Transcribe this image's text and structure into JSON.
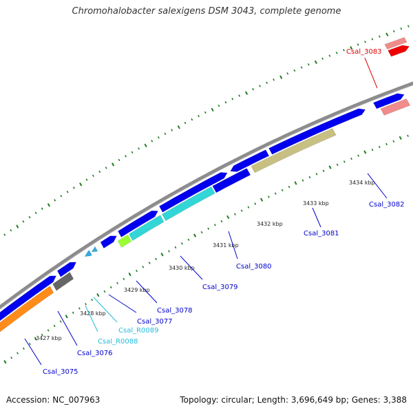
{
  "title": "Chromohalobacter salexigens DSM 3043, complete genome",
  "footer": {
    "accession": "Accession: NC_007963",
    "info": "Topology: circular; Length: 3,696,649 bp; Genes: 3,388"
  },
  "colors": {
    "backbone": "#8c8c8c",
    "tick_green": "#1f7a1f",
    "gene_blue": "#0000ee",
    "label_blue": "#0000cc",
    "label_cyan": "#22bbdd",
    "label_red": "#dd0000",
    "cds_orange": "#ff8c1a",
    "cds_gray": "#666666",
    "cds_lime": "#99ff33",
    "cds_cyan": "#33d6d6",
    "cds_khaki": "#c8c083",
    "cds_pink": "#f08c8c",
    "cds_red": "#ee0000"
  },
  "tick_labels": [
    "3427 kbp",
    "3428 kbp",
    "3429 kbp",
    "3430 kbp",
    "3431 kbp",
    "3432 kbp",
    "3433 kbp",
    "3434 kbp"
  ],
  "gene_labels": [
    {
      "id": "Csal_3075",
      "color": "blue"
    },
    {
      "id": "Csal_3076",
      "color": "blue"
    },
    {
      "id": "Csal_R0088",
      "color": "cyan"
    },
    {
      "id": "Csal_R0089",
      "color": "cyan"
    },
    {
      "id": "Csal_3077",
      "color": "blue"
    },
    {
      "id": "Csal_3078",
      "color": "blue"
    },
    {
      "id": "Csal_3079",
      "color": "blue"
    },
    {
      "id": "Csal_3080",
      "color": "blue"
    },
    {
      "id": "Csal_3081",
      "color": "blue"
    },
    {
      "id": "Csal_3082",
      "color": "blue"
    },
    {
      "id": "Csal_3083",
      "color": "red"
    }
  ]
}
